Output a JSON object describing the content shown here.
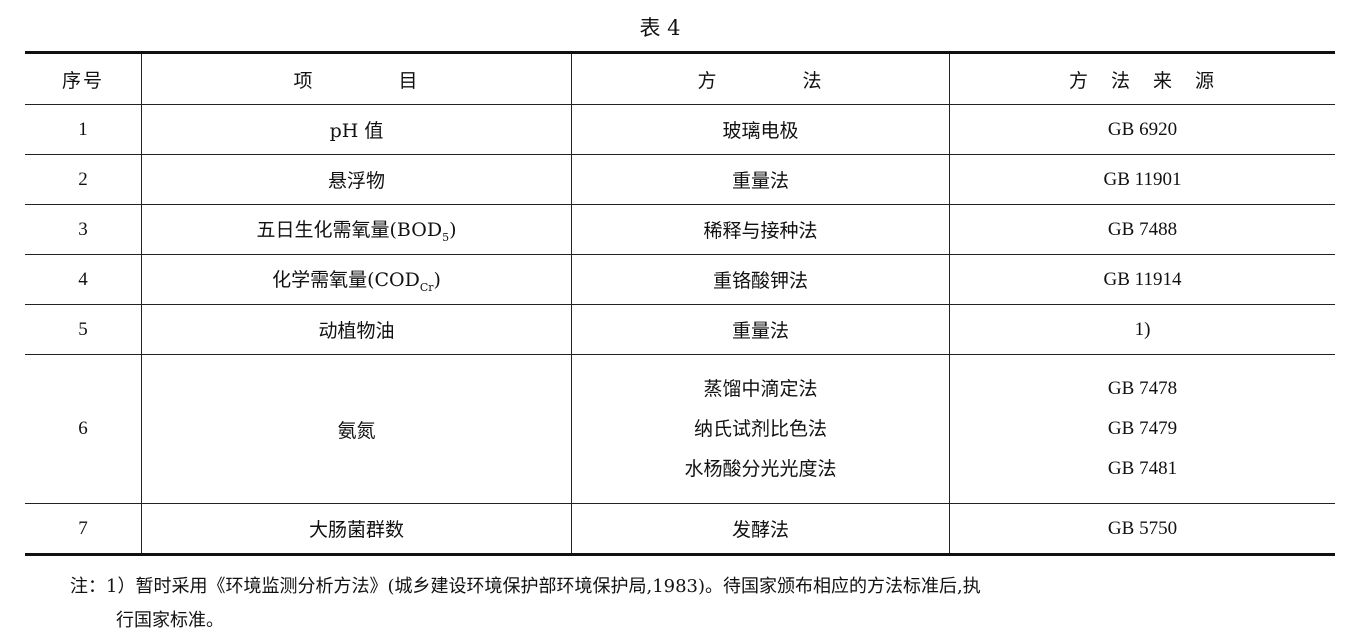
{
  "title": "表 4",
  "table": {
    "headers": [
      "序号",
      "项　　　　目",
      "方　　　　法",
      "方　法　来　源"
    ],
    "rows": [
      {
        "no": "1",
        "item": "pH 值",
        "item_sub": "",
        "item_suffix": "",
        "methods": [
          "玻璃电极"
        ],
        "sources": [
          "GB 6920"
        ]
      },
      {
        "no": "2",
        "item": "悬浮物",
        "item_sub": "",
        "item_suffix": "",
        "methods": [
          "重量法"
        ],
        "sources": [
          "GB 11901"
        ]
      },
      {
        "no": "3",
        "item": "五日生化需氧量(BOD",
        "item_sub": "5",
        "item_suffix": ")",
        "methods": [
          "稀释与接种法"
        ],
        "sources": [
          "GB 7488"
        ]
      },
      {
        "no": "4",
        "item": "化学需氧量(COD",
        "item_sub": "Cr",
        "item_suffix": ")",
        "methods": [
          "重铬酸钾法"
        ],
        "sources": [
          "GB 11914"
        ]
      },
      {
        "no": "5",
        "item": "动植物油",
        "item_sub": "",
        "item_suffix": "",
        "methods": [
          "重量法"
        ],
        "sources": [
          "1)"
        ]
      },
      {
        "no": "6",
        "item": "氨氮",
        "item_sub": "",
        "item_suffix": "",
        "methods": [
          "蒸馏中滴定法",
          "纳氏试剂比色法",
          "水杨酸分光光度法"
        ],
        "sources": [
          "GB 7478",
          "GB 7479",
          "GB 7481"
        ]
      },
      {
        "no": "7",
        "item": "大肠菌群数",
        "item_sub": "",
        "item_suffix": "",
        "methods": [
          "发酵法"
        ],
        "sources": [
          "GB 5750"
        ]
      }
    ]
  },
  "note": {
    "line1": "注：1）暂时采用《环境监测分析方法》(城乡建设环境保护部环境保护局,1983)。待国家颁布相应的方法标准后,执",
    "line2": "行国家标准。"
  }
}
